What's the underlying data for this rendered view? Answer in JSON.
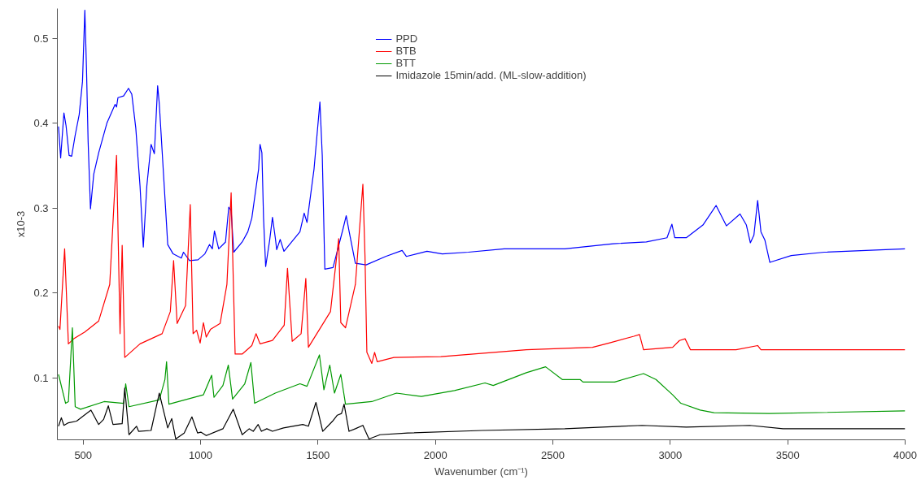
{
  "chart_data": {
    "type": "line",
    "xlabel": "Wavenumber (cm⁻¹)",
    "ylabel": "x10-3",
    "xlim": [
      390,
      4000
    ],
    "ylim": [
      0.027,
      0.535
    ],
    "xticks": [
      500,
      1000,
      1500,
      2000,
      2500,
      3000,
      3500,
      4000
    ],
    "yticks": [
      0.1,
      0.2,
      0.3,
      0.4,
      0.5
    ],
    "grid": false,
    "legend": "top",
    "line_style": "solid",
    "marker": "none",
    "series": [
      {
        "name": "PPD",
        "color": "#0000ff",
        "x": [
          395,
          404,
          418,
          427,
          440,
          451,
          466,
          483,
          497,
          507,
          514,
          521,
          531,
          545,
          566,
          601,
          636,
          642,
          648,
          672,
          693,
          707,
          724,
          742,
          756,
          771,
          789,
          803,
          817,
          824,
          842,
          860,
          883,
          918,
          927,
          953,
          989,
          1018,
          1038,
          1050,
          1059,
          1077,
          1106,
          1120,
          1130,
          1141,
          1177,
          1201,
          1218,
          1247,
          1253,
          1261,
          1268,
          1277,
          1294,
          1306,
          1318,
          1324,
          1339,
          1355,
          1423,
          1441,
          1453,
          1483,
          1508,
          1518,
          1529,
          1564,
          1606,
          1620,
          1632,
          1659,
          1705,
          1788,
          1858,
          1876,
          1964,
          2029,
          2140,
          2293,
          2551,
          2757,
          2898,
          2986,
          3007,
          3019,
          3068,
          3139,
          3195,
          3239,
          3297,
          3324,
          3341,
          3356,
          3372,
          3386,
          3403,
          3424,
          3515,
          3656,
          4000
        ],
        "values": [
          0.396,
          0.359,
          0.412,
          0.397,
          0.362,
          0.361,
          0.386,
          0.41,
          0.449,
          0.533,
          0.465,
          0.378,
          0.299,
          0.34,
          0.365,
          0.4,
          0.422,
          0.419,
          0.43,
          0.432,
          0.441,
          0.434,
          0.394,
          0.326,
          0.254,
          0.326,
          0.375,
          0.364,
          0.444,
          0.423,
          0.34,
          0.257,
          0.246,
          0.241,
          0.248,
          0.238,
          0.239,
          0.246,
          0.257,
          0.252,
          0.273,
          0.252,
          0.26,
          0.301,
          0.297,
          0.248,
          0.26,
          0.272,
          0.288,
          0.346,
          0.375,
          0.365,
          0.288,
          0.231,
          0.262,
          0.289,
          0.265,
          0.251,
          0.263,
          0.249,
          0.272,
          0.294,
          0.283,
          0.346,
          0.425,
          0.362,
          0.228,
          0.23,
          0.275,
          0.291,
          0.273,
          0.235,
          0.233,
          0.243,
          0.25,
          0.243,
          0.249,
          0.246,
          0.248,
          0.252,
          0.252,
          0.258,
          0.26,
          0.265,
          0.281,
          0.265,
          0.265,
          0.28,
          0.303,
          0.279,
          0.293,
          0.28,
          0.259,
          0.268,
          0.309,
          0.272,
          0.262,
          0.236,
          0.244,
          0.248,
          0.252
        ]
      },
      {
        "name": "BTB",
        "color": "#ff0000",
        "x": [
          395,
          401,
          421,
          437,
          460,
          507,
          566,
          613,
          642,
          657,
          666,
          677,
          742,
          836,
          871,
          885,
          900,
          936,
          956,
          968,
          983,
          998,
          1012,
          1024,
          1042,
          1083,
          1112,
          1130,
          1141,
          1147,
          1177,
          1218,
          1236,
          1253,
          1306,
          1356,
          1370,
          1390,
          1428,
          1448,
          1459,
          1553,
          1588,
          1597,
          1617,
          1659,
          1691,
          1700,
          1708,
          1729,
          1741,
          1752,
          1823,
          2023,
          2387,
          2669,
          2739,
          2845,
          2869,
          2886,
          3010,
          3039,
          3063,
          3086,
          3280,
          3372,
          3386,
          4000
        ],
        "values": [
          0.161,
          0.157,
          0.252,
          0.14,
          0.146,
          0.154,
          0.167,
          0.21,
          0.362,
          0.152,
          0.256,
          0.124,
          0.14,
          0.152,
          0.178,
          0.238,
          0.164,
          0.185,
          0.304,
          0.152,
          0.156,
          0.141,
          0.165,
          0.148,
          0.157,
          0.164,
          0.21,
          0.318,
          0.195,
          0.128,
          0.128,
          0.138,
          0.152,
          0.14,
          0.144,
          0.162,
          0.229,
          0.143,
          0.152,
          0.217,
          0.136,
          0.178,
          0.264,
          0.165,
          0.159,
          0.21,
          0.328,
          0.243,
          0.13,
          0.117,
          0.13,
          0.119,
          0.124,
          0.125,
          0.133,
          0.136,
          0.141,
          0.149,
          0.151,
          0.133,
          0.136,
          0.144,
          0.146,
          0.133,
          0.133,
          0.138,
          0.133,
          0.133
        ]
      },
      {
        "name": "BTT",
        "color": "#009900",
        "x": [
          395,
          425,
          437,
          454,
          466,
          489,
          589,
          672,
          681,
          695,
          824,
          848,
          855,
          865,
          1012,
          1047,
          1057,
          1095,
          1118,
          1136,
          1188,
          1214,
          1230,
          1318,
          1423,
          1453,
          1506,
          1525,
          1550,
          1570,
          1597,
          1617,
          1729,
          1834,
          1940,
          2081,
          2211,
          2246,
          2387,
          2469,
          2540,
          2616,
          2628,
          2763,
          2886,
          2939,
          3010,
          3045,
          3127,
          3186,
          3421,
          4000
        ],
        "values": [
          0.104,
          0.07,
          0.072,
          0.159,
          0.066,
          0.063,
          0.072,
          0.07,
          0.093,
          0.066,
          0.074,
          0.098,
          0.119,
          0.069,
          0.08,
          0.103,
          0.077,
          0.091,
          0.115,
          0.075,
          0.093,
          0.118,
          0.07,
          0.082,
          0.093,
          0.09,
          0.127,
          0.086,
          0.115,
          0.082,
          0.104,
          0.069,
          0.072,
          0.082,
          0.078,
          0.085,
          0.094,
          0.091,
          0.106,
          0.113,
          0.098,
          0.098,
          0.095,
          0.095,
          0.105,
          0.098,
          0.08,
          0.07,
          0.062,
          0.059,
          0.058,
          0.061
        ]
      },
      {
        "name": "Imidazole 15min/add. (ML-slow-addition)",
        "color": "#000000",
        "x": [
          395,
          407,
          418,
          437,
          472,
          533,
          566,
          587,
          607,
          627,
          666,
          677,
          695,
          727,
          736,
          789,
          824,
          860,
          877,
          894,
          930,
          963,
          987,
          1001,
          1024,
          1095,
          1139,
          1177,
          1207,
          1224,
          1245,
          1259,
          1282,
          1306,
          1353,
          1435,
          1459,
          1491,
          1520,
          1562,
          1582,
          1600,
          1611,
          1632,
          1659,
          1691,
          1717,
          1764,
          1882,
          2199,
          2551,
          2880,
          3068,
          3338,
          3480,
          4000
        ],
        "values": [
          0.043,
          0.053,
          0.044,
          0.047,
          0.049,
          0.062,
          0.045,
          0.051,
          0.067,
          0.045,
          0.046,
          0.088,
          0.033,
          0.043,
          0.037,
          0.038,
          0.082,
          0.041,
          0.052,
          0.028,
          0.035,
          0.054,
          0.035,
          0.036,
          0.032,
          0.04,
          0.063,
          0.033,
          0.04,
          0.037,
          0.045,
          0.037,
          0.04,
          0.037,
          0.041,
          0.045,
          0.043,
          0.071,
          0.037,
          0.049,
          0.056,
          0.058,
          0.069,
          0.037,
          0.04,
          0.044,
          0.028,
          0.033,
          0.035,
          0.038,
          0.04,
          0.044,
          0.042,
          0.044,
          0.04,
          0.04
        ]
      }
    ]
  }
}
